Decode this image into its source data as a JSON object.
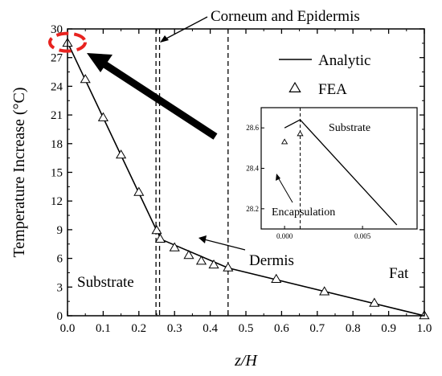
{
  "chart_data": [
    {
      "type": "line",
      "xlabel": "z/H",
      "ylabel": "Temperature Increase (°C)",
      "xlim": [
        0,
        1.0
      ],
      "ylim": [
        0,
        30
      ],
      "xticks": [
        "0.0",
        "0.1",
        "0.2",
        "0.3",
        "0.4",
        "0.5",
        "0.6",
        "0.7",
        "0.8",
        "0.9",
        "1.0"
      ],
      "yticks": [
        "0",
        "3",
        "6",
        "9",
        "12",
        "15",
        "18",
        "21",
        "24",
        "27",
        "30"
      ],
      "legend": {
        "position": "top-right"
      },
      "series": [
        {
          "name": "Analytic",
          "style": "solid-line",
          "color": "#000000",
          "points": [
            [
              0.0,
              28.6
            ],
            [
              0.25,
              8.9
            ],
            [
              0.262,
              8.0
            ],
            [
              0.45,
              5.0
            ],
            [
              1.0,
              0.0
            ]
          ]
        },
        {
          "name": "FEA",
          "style": "triangle-markers",
          "color": "#000000",
          "points": [
            [
              0.0,
              28.5
            ],
            [
              0.05,
              24.7
            ],
            [
              0.1,
              20.7
            ],
            [
              0.15,
              16.8
            ],
            [
              0.2,
              12.9
            ],
            [
              0.25,
              8.9
            ],
            [
              0.26,
              8.0
            ],
            [
              0.3,
              7.1
            ],
            [
              0.34,
              6.3
            ],
            [
              0.375,
              5.7
            ],
            [
              0.41,
              5.3
            ],
            [
              0.45,
              5.0
            ],
            [
              0.585,
              3.8
            ],
            [
              0.72,
              2.5
            ],
            [
              0.86,
              1.3
            ],
            [
              1.0,
              0.0
            ]
          ]
        }
      ],
      "vertical_lines": [
        0.248,
        0.258,
        0.45
      ],
      "annotations": {
        "corneum": "Corneum and Epidermis",
        "dermis": "Dermis",
        "substrate": "Substrate",
        "fat": "Fat"
      },
      "highlight_color": "#e8231f"
    },
    {
      "type": "line",
      "role": "inset",
      "xticks": [
        "0.000",
        "0.005"
      ],
      "yticks": [
        "28.2",
        "28.4",
        "28.6"
      ],
      "xlim": [
        -0.0015,
        0.0085
      ],
      "ylim": [
        28.1,
        28.7
      ],
      "line_points": [
        [
          0.0,
          28.6
        ],
        [
          0.001,
          28.64
        ],
        [
          0.0072,
          28.12
        ]
      ],
      "fea_points": [
        [
          0.0,
          28.53
        ],
        [
          0.001,
          28.57
        ]
      ],
      "vertical_line": 0.001,
      "annotations": {
        "substrate": "Substrate",
        "encapsulation": "Encapsulation"
      }
    }
  ]
}
